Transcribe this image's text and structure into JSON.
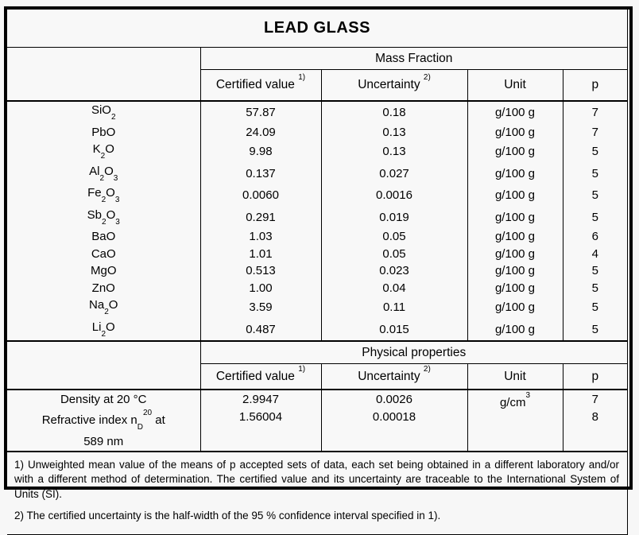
{
  "title": "LEAD GLASS",
  "mass_fraction": {
    "section_label": "Mass Fraction",
    "columns": {
      "certified": [
        {
          "t": "Certified value "
        },
        {
          "sup": "1)"
        }
      ],
      "uncertainty": [
        {
          "t": "Uncertainty "
        },
        {
          "sup": "2)"
        }
      ],
      "unit": "Unit",
      "p": "p"
    },
    "rows": [
      {
        "name": [
          {
            "t": "SiO"
          },
          {
            "sub": "2"
          }
        ],
        "certified": "57.87",
        "uncertainty": "0.18",
        "unit": "g/100 g",
        "p": "7"
      },
      {
        "name": [
          {
            "t": "PbO"
          }
        ],
        "certified": "24.09",
        "uncertainty": "0.13",
        "unit": "g/100 g",
        "p": "7"
      },
      {
        "name": [
          {
            "t": "K"
          },
          {
            "sub": "2"
          },
          {
            "t": "O"
          }
        ],
        "certified": "9.98",
        "uncertainty": "0.13",
        "unit": "g/100 g",
        "p": "5"
      },
      {
        "name": [
          {
            "t": "Al"
          },
          {
            "sub": "2"
          },
          {
            "t": "O"
          },
          {
            "sub": "3"
          }
        ],
        "certified": "0.137",
        "uncertainty": "0.027",
        "unit": "g/100 g",
        "p": "5"
      },
      {
        "name": [
          {
            "t": "Fe"
          },
          {
            "sub": "2"
          },
          {
            "t": "O"
          },
          {
            "sub": "3"
          }
        ],
        "certified": "0.0060",
        "uncertainty": "0.0016",
        "unit": "g/100 g",
        "p": "5"
      },
      {
        "name": [
          {
            "t": "Sb"
          },
          {
            "sub": "2"
          },
          {
            "t": "O"
          },
          {
            "sub": "3"
          }
        ],
        "certified": "0.291",
        "uncertainty": "0.019",
        "unit": "g/100 g",
        "p": "5"
      },
      {
        "name": [
          {
            "t": "BaO"
          }
        ],
        "certified": "1.03",
        "uncertainty": "0.05",
        "unit": "g/100 g",
        "p": "6"
      },
      {
        "name": [
          {
            "t": "CaO"
          }
        ],
        "certified": "1.01",
        "uncertainty": "0.05",
        "unit": "g/100 g",
        "p": "4"
      },
      {
        "name": [
          {
            "t": "MgO"
          }
        ],
        "certified": "0.513",
        "uncertainty": "0.023",
        "unit": "g/100 g",
        "p": "5"
      },
      {
        "name": [
          {
            "t": "ZnO"
          }
        ],
        "certified": "1.00",
        "uncertainty": "0.04",
        "unit": "g/100 g",
        "p": "5"
      },
      {
        "name": [
          {
            "t": "Na"
          },
          {
            "sub": "2"
          },
          {
            "t": "O"
          }
        ],
        "certified": "3.59",
        "uncertainty": "0.11",
        "unit": "g/100 g",
        "p": "5"
      },
      {
        "name": [
          {
            "t": "Li"
          },
          {
            "sub": "2"
          },
          {
            "t": "O"
          }
        ],
        "certified": "0.487",
        "uncertainty": "0.015",
        "unit": "g/100 g",
        "p": "5"
      }
    ]
  },
  "physical": {
    "section_label": "Physical properties",
    "columns": {
      "certified": [
        {
          "t": "Certified value "
        },
        {
          "sup": "1)"
        }
      ],
      "uncertainty": [
        {
          "t": "Uncertainty "
        },
        {
          "sup": "2)"
        }
      ],
      "unit": "Unit",
      "p": "p"
    },
    "rows": [
      {
        "name": [
          {
            "t": "Density at 20 °C"
          }
        ],
        "certified": "2.9947",
        "uncertainty": "0.0026",
        "unit": [
          {
            "t": "g/cm"
          },
          {
            "sup": "3"
          }
        ],
        "p": "7"
      },
      {
        "name": [
          {
            "t": "Refractive index n"
          },
          {
            "sub": "D"
          },
          {
            "sup": "20"
          },
          {
            "t": " at"
          },
          {
            "br": true
          },
          {
            "t": "589 nm"
          }
        ],
        "certified": "1.56004",
        "uncertainty": "0.00018",
        "unit": "",
        "p": "8"
      }
    ]
  },
  "footnotes": [
    "1) Unweighted mean value of the means of p accepted sets of data, each set being obtained in a different laboratory and/or with a different method of determination. The certified value and its uncertainty are traceable to the International System of Units (SI).",
    "2) The certified uncertainty is the half-width of the 95 % confidence interval specified in 1)."
  ]
}
